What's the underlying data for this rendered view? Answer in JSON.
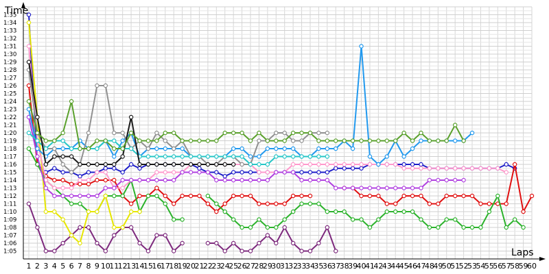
{
  "chart_data": {
    "type": "line",
    "ylabel": "Time",
    "xlabel": "Laps",
    "x": [
      1,
      2,
      3,
      4,
      5,
      6,
      7,
      8,
      9,
      10,
      11,
      12,
      13,
      14,
      15,
      16,
      17,
      18,
      19,
      20,
      21,
      22,
      23,
      24,
      25,
      26,
      27,
      28,
      29,
      30,
      31,
      32,
      33,
      34,
      35,
      36,
      37,
      38,
      39,
      40,
      41,
      42,
      43,
      44,
      45,
      46,
      47,
      48,
      49,
      50,
      51,
      52,
      53,
      54,
      55,
      56,
      57,
      58,
      59,
      60
    ],
    "xlim": [
      1,
      60
    ],
    "ylim_seconds": [
      64,
      96
    ],
    "ytick_labels": [
      "1:05",
      "1:06",
      "1:07",
      "1:08",
      "1:09",
      "1:10",
      "1:11",
      "1:12",
      "1:13",
      "1:14",
      "1:15",
      "1:16",
      "1:17",
      "1:18",
      "1:19",
      "1:20",
      "1:21",
      "1:22",
      "1:23",
      "1:24",
      "1:25",
      "1:26",
      "1:27",
      "1:28",
      "1:29",
      "1:30",
      "1:31",
      "1:32",
      "1:33",
      "1:34",
      "1:35"
    ],
    "grid": true,
    "legend": "none",
    "series": [
      {
        "color": "#1c1cc8",
        "values": [
          95,
          76,
          75,
          75.5,
          75,
          75,
          74.5,
          75,
          75,
          75.5,
          75.5,
          75,
          76,
          75.5,
          76,
          76,
          76,
          76,
          76,
          76,
          75.5,
          75,
          75,
          74.5,
          75,
          75,
          75,
          75,
          75,
          75,
          75,
          75,
          75,
          75,
          75,
          75,
          75.5,
          75.5,
          75.5,
          75.5,
          76,
          76,
          76,
          76,
          76,
          76,
          76,
          75.5,
          75.5,
          75.5,
          75.5,
          75.5,
          75.5,
          75.5,
          75.5,
          75.5,
          76,
          75.5,
          null,
          null
        ]
      },
      {
        "color": "#e01010",
        "values": [
          86,
          76,
          74.5,
          74,
          74,
          73.5,
          73.5,
          73.5,
          74,
          74,
          74,
          72,
          71,
          72,
          72,
          73,
          72,
          71,
          72,
          72,
          72,
          71,
          70,
          71,
          72,
          72,
          72,
          71,
          71,
          71,
          71,
          72,
          72,
          72,
          null,
          null,
          null,
          73,
          73,
          72,
          72,
          72,
          71,
          71,
          72,
          72,
          72,
          71,
          71,
          72,
          72,
          72,
          72,
          71,
          71,
          71,
          71,
          76,
          70,
          72
        ]
      },
      {
        "color": "#2bb22b",
        "values": [
          78,
          76,
          74,
          73,
          72,
          71,
          71,
          70,
          70,
          72,
          72,
          72,
          74,
          70,
          72,
          72,
          71,
          69,
          69,
          null,
          null,
          72,
          71,
          70,
          69,
          68,
          68,
          69,
          68,
          68,
          69,
          70,
          71,
          71,
          71,
          70,
          70,
          70,
          69,
          69,
          68,
          69,
          70,
          70,
          70,
          70,
          69,
          68,
          68,
          69,
          69,
          68,
          68,
          68,
          70,
          72,
          68,
          69,
          68,
          null
        ]
      },
      {
        "color": "#7d2a7d",
        "values": [
          71,
          68,
          65,
          65,
          66,
          67,
          68,
          68,
          66,
          65,
          67,
          68,
          68,
          66,
          65,
          67,
          67,
          65,
          66,
          null,
          null,
          66,
          66,
          65,
          66,
          65,
          65,
          66,
          67,
          66,
          68,
          66,
          65,
          65,
          66,
          68,
          65,
          null,
          null,
          null,
          null,
          null,
          null,
          null,
          null,
          null,
          null,
          null,
          null,
          null,
          null,
          null,
          null,
          null,
          null,
          null,
          null,
          null,
          null,
          null
        ]
      },
      {
        "color": "#e6e600",
        "values": [
          94,
          82,
          70,
          70,
          69,
          67,
          66,
          70,
          70,
          72,
          68,
          68,
          70,
          70,
          null,
          null,
          null,
          null,
          null,
          null,
          null,
          null,
          null,
          null,
          null,
          null,
          null,
          null,
          null,
          null,
          null,
          null,
          null,
          null,
          null,
          null,
          null,
          null,
          null,
          null,
          null,
          null,
          null,
          null,
          null,
          null,
          null,
          null,
          null,
          null,
          null,
          null,
          null,
          null,
          null,
          null,
          null,
          null,
          null,
          null
        ]
      },
      {
        "color": "#ff99cc",
        "values": [
          91,
          79,
          74,
          73,
          73,
          73,
          74,
          74,
          75,
          75,
          73,
          73,
          74,
          74,
          74,
          75,
          75,
          75,
          75,
          76,
          76,
          76,
          76,
          76,
          76,
          76,
          76,
          75,
          75,
          75,
          75,
          76,
          76,
          76,
          76,
          76,
          76,
          76,
          76,
          76,
          76,
          76,
          76,
          76,
          75.5,
          75.5,
          75.5,
          75.5,
          75.5,
          75.5,
          75.5,
          75.5,
          75.5,
          75.5,
          75.5,
          75.5,
          75,
          null,
          null,
          null
        ]
      },
      {
        "color": "#b040e0",
        "values": [
          82,
          77,
          73,
          72,
          72,
          72,
          72,
          72,
          72,
          73,
          73,
          74,
          74,
          74,
          74,
          74,
          74,
          74,
          75,
          75,
          75,
          75,
          74,
          74,
          74,
          74,
          74,
          74,
          74,
          75,
          75,
          75,
          74,
          74,
          74,
          74,
          73,
          73,
          73,
          73,
          73,
          73,
          73,
          73,
          73,
          73,
          73,
          74,
          74,
          74,
          74,
          74,
          null,
          null,
          null,
          null,
          null,
          null,
          null,
          null
        ]
      },
      {
        "color": "#2299ee",
        "values": [
          83,
          78,
          77,
          78,
          78,
          78,
          79,
          78,
          78,
          79,
          77,
          79,
          80,
          77,
          78,
          78,
          78,
          78,
          78,
          77,
          77,
          77,
          77,
          77,
          78,
          78,
          77,
          77,
          78,
          78,
          78,
          78,
          77,
          77,
          78,
          78,
          78,
          79,
          78,
          91,
          77,
          76,
          77,
          79,
          77,
          78,
          79,
          79,
          79,
          79,
          79,
          79,
          80,
          null,
          null,
          null,
          null,
          null,
          null,
          null
        ]
      },
      {
        "color": "#909090",
        "values": [
          88,
          80,
          78,
          78,
          76,
          75,
          76,
          80,
          86,
          86,
          80,
          80,
          78,
          79,
          78,
          80,
          79,
          78,
          79,
          77,
          77,
          76,
          76,
          77,
          77,
          76,
          76,
          79,
          79,
          80,
          80,
          79,
          79,
          80,
          80,
          80,
          null,
          null,
          null,
          null,
          null,
          null,
          null,
          null,
          null,
          null,
          null,
          null,
          null,
          null,
          null,
          null,
          null,
          null,
          null,
          null,
          null,
          null,
          null,
          null
        ]
      },
      {
        "color": "#26c6c6",
        "values": [
          80,
          79,
          78,
          79,
          79,
          78,
          78,
          78,
          78,
          79,
          79,
          78,
          78,
          77,
          77,
          77,
          77,
          77,
          77,
          77,
          77,
          77,
          77,
          77,
          77,
          77,
          76,
          76,
          76,
          77,
          77,
          77,
          77,
          77,
          77,
          77,
          null,
          null,
          null,
          null,
          null,
          null,
          null,
          null,
          null,
          null,
          null,
          null,
          null,
          null,
          null,
          null,
          null,
          null,
          null,
          null,
          null,
          null,
          null,
          null
        ]
      },
      {
        "color": "#1a1a1a",
        "values": [
          89,
          82,
          76,
          77,
          77,
          77,
          76,
          76,
          76,
          76,
          76,
          77,
          82,
          76,
          76,
          76,
          76,
          76,
          76,
          76,
          76,
          76,
          76,
          76,
          76,
          null,
          null,
          null,
          null,
          null,
          null,
          null,
          null,
          null,
          null,
          null,
          null,
          null,
          null,
          null,
          null,
          null,
          null,
          null,
          null,
          null,
          null,
          null,
          null,
          null,
          null,
          null,
          null,
          null,
          null,
          null,
          null,
          null,
          null,
          null
        ]
      },
      {
        "color": "#5aa02c",
        "values": [
          84,
          80,
          79,
          79,
          80,
          84,
          78,
          78,
          79,
          79,
          78,
          78,
          80,
          79,
          79,
          79,
          80,
          80,
          79,
          79,
          79,
          79,
          79,
          80,
          80,
          80,
          79,
          80,
          79,
          79,
          79,
          80,
          80,
          80,
          79,
          79,
          79,
          79,
          79,
          79,
          79,
          79,
          79,
          79,
          80,
          79,
          80,
          79,
          79,
          79,
          81,
          79,
          null,
          null,
          null,
          null,
          null,
          null,
          null,
          null
        ]
      }
    ]
  }
}
